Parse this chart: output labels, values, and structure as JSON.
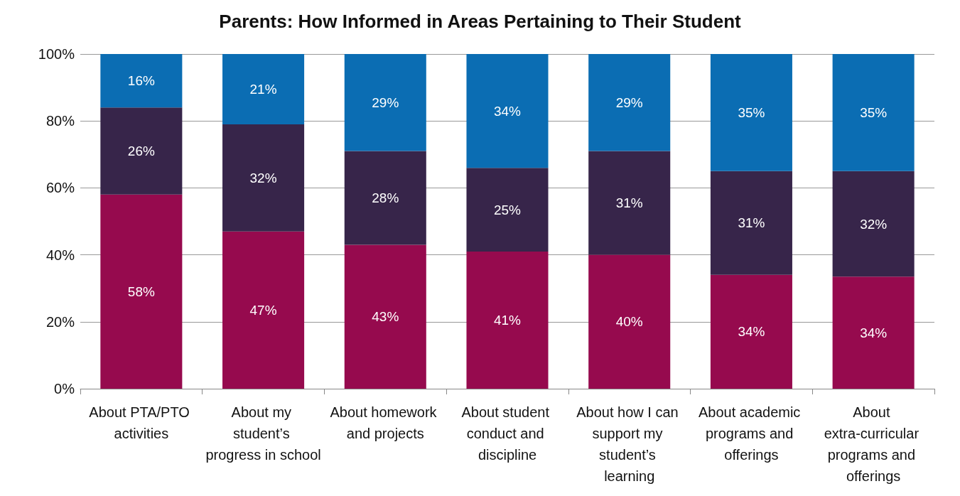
{
  "chart_data": {
    "type": "bar",
    "title": "Parents: How Informed in Areas Pertaining to Their Student",
    "categories": [
      "About PTA/PTO activities",
      "About my student’s progress in school",
      "About homework and projects",
      "About student conduct and discipline",
      "About how I can support my student’s learning",
      "About academic programs and offerings",
      "About extra-curricular programs and offerings"
    ],
    "stacked": true,
    "series": [
      {
        "color": "#960a4e",
        "values": [
          58,
          47,
          43,
          41,
          40,
          34,
          33.5
        ],
        "value_labels": [
          "58%",
          "47%",
          "43%",
          "41%",
          "40%",
          "34%",
          "34%"
        ]
      },
      {
        "color": "#37254a",
        "values": [
          26,
          32,
          28,
          25,
          31,
          31,
          31.5
        ],
        "value_labels": [
          "26%",
          "32%",
          "28%",
          "25%",
          "31%",
          "31%",
          "32%"
        ]
      },
      {
        "color": "#0b6db3",
        "values": [
          16,
          21,
          29,
          34,
          29,
          35,
          35
        ],
        "value_labels": [
          "16%",
          "21%",
          "29%",
          "34%",
          "29%",
          "35%",
          "35%"
        ]
      }
    ],
    "ylim": [
      0,
      100
    ],
    "yticks": [
      {
        "value": 0,
        "label": "0%"
      },
      {
        "value": 20,
        "label": "20%"
      },
      {
        "value": 40,
        "label": "40%"
      },
      {
        "value": 60,
        "label": "60%"
      },
      {
        "value": 80,
        "label": "80%"
      },
      {
        "value": 100,
        "label": "100%"
      }
    ],
    "grid": "y"
  }
}
